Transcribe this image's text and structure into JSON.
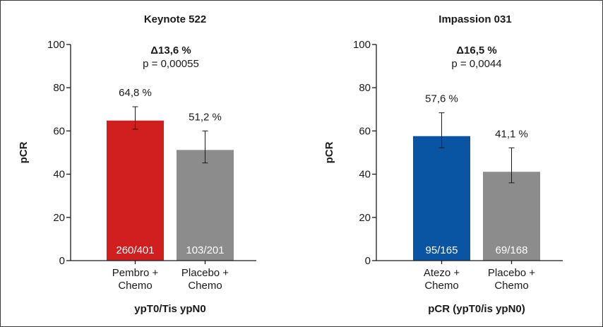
{
  "chart_data": [
    {
      "type": "bar",
      "title": "Keynote 522",
      "annotation": {
        "delta": "Δ13,6 %",
        "p": "p = 0,00055"
      },
      "ylabel": "pCR",
      "xlabel": "ypT0/Tis ypN0",
      "ylim": [
        0,
        100
      ],
      "yticks": [
        0,
        20,
        40,
        60,
        80,
        100
      ],
      "categories": [
        [
          "Pembro +",
          "Chemo"
        ],
        [
          "Placebo +",
          "Chemo"
        ]
      ],
      "values": [
        64.8,
        51.2
      ],
      "value_labels": [
        "64,8 %",
        "51,2 %"
      ],
      "n_labels": [
        "260/401",
        "103/201"
      ],
      "error_low": [
        60.8,
        45.2
      ],
      "error_high": [
        71.2,
        60.0
      ],
      "colors": [
        "#d11f1f",
        "#8c8c8c"
      ],
      "grid": false
    },
    {
      "type": "bar",
      "title": "Impassion 031",
      "annotation": {
        "delta": "Δ16,5 %",
        "p": "p = 0,0044"
      },
      "ylabel": "pCR",
      "xlabel": "pCR (ypT0/is ypN0)",
      "ylim": [
        0,
        100
      ],
      "yticks": [
        0,
        20,
        40,
        60,
        80,
        100
      ],
      "categories": [
        [
          "Atezo +",
          "Chemo"
        ],
        [
          "Placebo +",
          "Chemo"
        ]
      ],
      "values": [
        57.6,
        41.1
      ],
      "value_labels": [
        "57,6 %",
        "41,1 %"
      ],
      "n_labels": [
        "95/165",
        "69/168"
      ],
      "error_low": [
        52.2,
        36.0
      ],
      "error_high": [
        68.4,
        52.2
      ],
      "colors": [
        "#0a54a4",
        "#8c8c8c"
      ],
      "grid": false
    }
  ]
}
